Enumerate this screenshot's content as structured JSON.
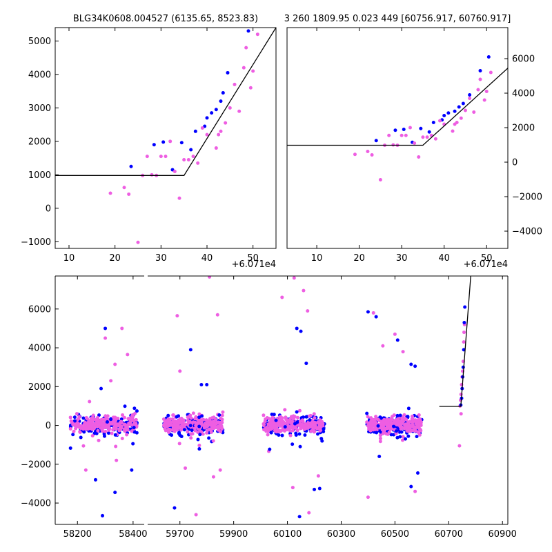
{
  "colors": {
    "blue": "#0000ff",
    "pink": "#ee5ee2",
    "model": "#000000",
    "frame": "#000000"
  },
  "chart_data": [
    {
      "id": "zoom-left",
      "type": "scatter",
      "title": "BLG34K0608.004527 (6135.65, 8523.83)",
      "xlabel": "",
      "ylabel": "",
      "offset_label": "+6.071e4",
      "xlim": [
        7,
        55
      ],
      "ylim": [
        -1200,
        5400
      ],
      "xticks": [
        10,
        20,
        30,
        40,
        50
      ],
      "yticks": [
        -1000,
        0,
        1000,
        2000,
        3000,
        4000,
        5000
      ],
      "y_axis_side": "left",
      "grid": false,
      "model": [
        [
          7,
          980
        ],
        [
          35,
          980
        ],
        [
          55,
          5400
        ]
      ],
      "series": [
        {
          "color": "blue",
          "points": [
            [
              23.5,
              1250
            ],
            [
              28.5,
              1900
            ],
            [
              30.5,
              1980
            ],
            [
              32.5,
              1150
            ],
            [
              34.5,
              1960
            ],
            [
              36.5,
              1750
            ],
            [
              37.5,
              2300
            ],
            [
              39.5,
              2450
            ],
            [
              40,
              2700
            ],
            [
              41,
              2850
            ],
            [
              42,
              2950
            ],
            [
              43,
              3200
            ],
            [
              43.5,
              3450
            ],
            [
              44.5,
              4050
            ],
            [
              49,
              5300
            ]
          ]
        },
        {
          "color": "pink",
          "points": [
            [
              19,
              450
            ],
            [
              22,
              620
            ],
            [
              23,
              420
            ],
            [
              25,
              -1020
            ],
            [
              26,
              980
            ],
            [
              27,
              1550
            ],
            [
              28,
              1000
            ],
            [
              29,
              980
            ],
            [
              30,
              1550
            ],
            [
              31,
              1550
            ],
            [
              32,
              2000
            ],
            [
              33,
              1100
            ],
            [
              34,
              300
            ],
            [
              35,
              1450
            ],
            [
              36,
              1450
            ],
            [
              37,
              1550
            ],
            [
              38,
              1350
            ],
            [
              39,
              2400
            ],
            [
              40,
              2200
            ],
            [
              42,
              1800
            ],
            [
              42.5,
              2200
            ],
            [
              43,
              2300
            ],
            [
              44,
              2550
            ],
            [
              45,
              3000
            ],
            [
              46,
              3700
            ],
            [
              47,
              2900
            ],
            [
              48,
              4200
            ],
            [
              49.5,
              3600
            ],
            [
              50,
              4100
            ],
            [
              51,
              5200
            ],
            [
              48.5,
              4800
            ]
          ]
        }
      ]
    },
    {
      "id": "zoom-right",
      "type": "scatter",
      "title": "3 260 1809.95 0.023 449 [60756.917, 60760.917]",
      "xlabel": "",
      "ylabel": "",
      "offset_label": "+6.071e4",
      "xlim": [
        3,
        55
      ],
      "ylim": [
        -5000,
        7800
      ],
      "xticks": [
        10,
        20,
        30,
        40,
        50
      ],
      "yticks": [
        -4000,
        -2000,
        0,
        2000,
        4000,
        6000
      ],
      "y_axis_side": "right",
      "grid": false,
      "model": [
        [
          3,
          980
        ],
        [
          35,
          980
        ],
        [
          55,
          5450
        ]
      ],
      "series": [
        {
          "color": "blue",
          "points": [
            [
              24,
              1250
            ],
            [
              28.5,
              1850
            ],
            [
              30.5,
              1900
            ],
            [
              32.5,
              1150
            ],
            [
              34.5,
              1950
            ],
            [
              36.5,
              1750
            ],
            [
              37.5,
              2300
            ],
            [
              39.5,
              2450
            ],
            [
              40,
              2700
            ],
            [
              41,
              2850
            ],
            [
              42.5,
              2950
            ],
            [
              43.5,
              3200
            ],
            [
              44.5,
              3400
            ],
            [
              46,
              3900
            ],
            [
              48.5,
              5300
            ],
            [
              50.5,
              6100
            ]
          ]
        },
        {
          "color": "pink",
          "points": [
            [
              19,
              450
            ],
            [
              22,
              620
            ],
            [
              23,
              420
            ],
            [
              25,
              -1020
            ],
            [
              26,
              980
            ],
            [
              27,
              1550
            ],
            [
              28,
              1000
            ],
            [
              29,
              980
            ],
            [
              30,
              1550
            ],
            [
              31,
              1550
            ],
            [
              32,
              2000
            ],
            [
              33,
              1100
            ],
            [
              34,
              300
            ],
            [
              35,
              1450
            ],
            [
              36,
              1450
            ],
            [
              37,
              1550
            ],
            [
              38,
              1350
            ],
            [
              39,
              2400
            ],
            [
              40,
              2200
            ],
            [
              42,
              1800
            ],
            [
              42.5,
              2200
            ],
            [
              43,
              2300
            ],
            [
              44,
              2550
            ],
            [
              45,
              3000
            ],
            [
              46,
              3700
            ],
            [
              47,
              2900
            ],
            [
              48,
              4200
            ],
            [
              49.5,
              3600
            ],
            [
              50,
              4100
            ],
            [
              51,
              5200
            ],
            [
              48.5,
              4800
            ]
          ]
        }
      ]
    },
    {
      "id": "full-lightcurve",
      "type": "scatter",
      "title": "",
      "xlabel": "",
      "ylabel": "",
      "broken_x_axis": true,
      "ylim": [
        -5100,
        7700
      ],
      "yticks": [
        -4000,
        -2000,
        0,
        2000,
        4000,
        6000
      ],
      "segments": [
        {
          "xlim": [
            58120,
            58440
          ],
          "xticks": [
            58200,
            58400
          ]
        },
        {
          "xlim": [
            59580,
            60920
          ],
          "xticks": [
            59700,
            59900,
            60100,
            60300,
            60500,
            60700,
            60900
          ]
        }
      ],
      "seasons": [
        {
          "x0": 58175,
          "x1": 58415,
          "seed": 11
        },
        {
          "x0": 59640,
          "x1": 59860,
          "seed": 23
        },
        {
          "x0": 60010,
          "x1": 60240,
          "seed": 37
        },
        {
          "x0": 60395,
          "x1": 60600,
          "seed": 53
        }
      ],
      "model": [
        [
          60665,
          980
        ],
        [
          60745,
          980
        ],
        [
          60782,
          7700
        ]
      ],
      "outliers_pink": [
        [
          58300,
          4500
        ],
        [
          58320,
          2300
        ],
        [
          58335,
          3150
        ],
        [
          58360,
          5000
        ],
        [
          58380,
          3650
        ],
        [
          58230,
          -2300
        ],
        [
          58340,
          -1800
        ],
        [
          59690,
          5650
        ],
        [
          59700,
          2800
        ],
        [
          59720,
          -2200
        ],
        [
          59760,
          -4600
        ],
        [
          59810,
          7650
        ],
        [
          59825,
          -2650
        ],
        [
          59840,
          5700
        ],
        [
          59850,
          -2300
        ],
        [
          60080,
          6600
        ],
        [
          60120,
          -3200
        ],
        [
          60125,
          7600
        ],
        [
          60160,
          6950
        ],
        [
          60175,
          5900
        ],
        [
          60180,
          -4500
        ],
        [
          60215,
          -2600
        ],
        [
          60400,
          -3700
        ],
        [
          60420,
          5800
        ],
        [
          60455,
          4100
        ],
        [
          60500,
          4700
        ],
        [
          60530,
          3800
        ],
        [
          60575,
          -3400
        ],
        [
          60740,
          -1050
        ]
      ],
      "outliers_blue": [
        [
          58300,
          5000
        ],
        [
          58285,
          1900
        ],
        [
          58290,
          -4650
        ],
        [
          58335,
          -3450
        ],
        [
          58395,
          -2300
        ],
        [
          58265,
          -2800
        ],
        [
          59740,
          3900
        ],
        [
          59800,
          2100
        ],
        [
          59680,
          -4250
        ],
        [
          59780,
          2100
        ],
        [
          60135,
          5000
        ],
        [
          60150,
          4850
        ],
        [
          60170,
          3200
        ],
        [
          60220,
          -3250
        ],
        [
          60200,
          -3300
        ],
        [
          60145,
          -4700
        ],
        [
          60400,
          5850
        ],
        [
          60430,
          5600
        ],
        [
          60510,
          4400
        ],
        [
          60560,
          3150
        ],
        [
          60575,
          3050
        ],
        [
          60585,
          -2450
        ],
        [
          60560,
          -3150
        ]
      ],
      "flare_blue": [
        [
          60745,
          1050
        ],
        [
          60748,
          1400
        ],
        [
          60750,
          1900
        ],
        [
          60752,
          2500
        ],
        [
          60754,
          3000
        ],
        [
          60756,
          3900
        ],
        [
          60758,
          5300
        ],
        [
          60760,
          6100
        ]
      ],
      "flare_pink": [
        [
          60742,
          1000
        ],
        [
          60744,
          1300
        ],
        [
          60746,
          1600
        ],
        [
          60748,
          2100
        ],
        [
          60750,
          2500
        ],
        [
          60752,
          2800
        ],
        [
          60754,
          3300
        ],
        [
          60756,
          4300
        ],
        [
          60757,
          4800
        ],
        [
          60759,
          5200
        ],
        [
          60746,
          600
        ]
      ]
    }
  ]
}
